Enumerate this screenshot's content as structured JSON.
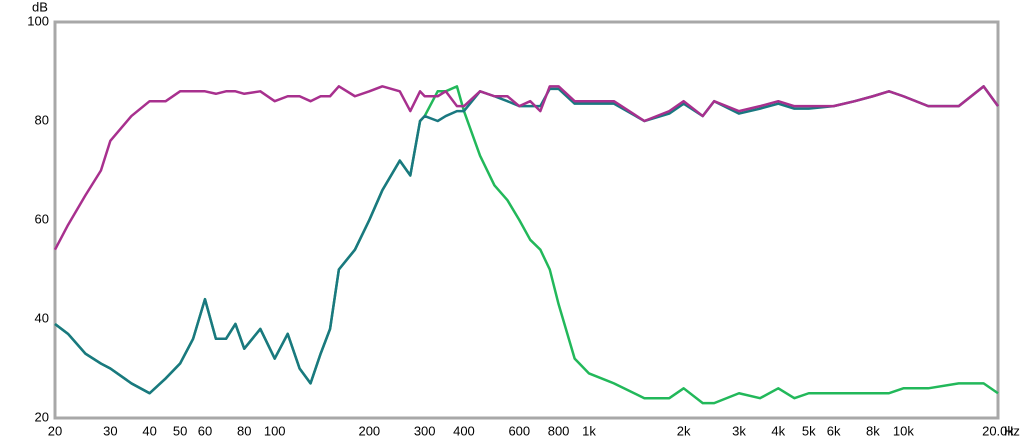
{
  "chart_data": {
    "type": "line",
    "y_unit": "dB",
    "x_unit": "Hz",
    "xscale": "log",
    "grid": true,
    "xlim": [
      20,
      20000
    ],
    "ylim": [
      20,
      100
    ],
    "yticks": [
      20,
      40,
      60,
      80,
      100
    ],
    "ygrid_minor": [
      30,
      50,
      70,
      90
    ],
    "xticks": [
      20,
      30,
      40,
      50,
      60,
      80,
      100,
      200,
      300,
      400,
      600,
      800,
      {
        "value": 1000,
        "label": "1k"
      },
      {
        "value": 2000,
        "label": "2k"
      },
      {
        "value": 3000,
        "label": "3k"
      },
      {
        "value": 4000,
        "label": "4k"
      },
      {
        "value": 5000,
        "label": "5k"
      },
      {
        "value": 6000,
        "label": "6k"
      },
      {
        "value": 8000,
        "label": "8k"
      },
      {
        "value": 10000,
        "label": "10k"
      },
      {
        "value": 20000,
        "label": "20.0k"
      }
    ],
    "xgrid_minor": [
      70,
      90,
      500,
      700,
      900,
      7000,
      9000
    ],
    "x": [
      20,
      22,
      25,
      28,
      30,
      35,
      40,
      45,
      50,
      55,
      60,
      65,
      70,
      75,
      80,
      90,
      100,
      110,
      120,
      130,
      140,
      150,
      160,
      180,
      200,
      220,
      250,
      270,
      290,
      300,
      330,
      350,
      380,
      400,
      450,
      500,
      550,
      600,
      650,
      700,
      750,
      800,
      900,
      1000,
      1200,
      1500,
      1800,
      2000,
      2300,
      2500,
      3000,
      3500,
      4000,
      4500,
      5000,
      6000,
      7000,
      8000,
      9000,
      10000,
      12000,
      15000,
      18000,
      20000
    ],
    "series": [
      {
        "color": "#22b85a",
        "values": [
          39,
          37,
          33,
          31,
          30,
          27,
          25,
          28,
          31,
          36,
          44,
          36,
          36,
          39,
          34,
          38,
          32,
          37,
          30,
          27,
          33,
          38,
          50,
          54,
          60,
          66,
          72,
          69,
          80,
          81,
          86,
          86,
          87,
          82,
          73,
          67,
          64,
          60,
          56,
          54,
          50,
          43,
          32,
          29,
          27,
          24,
          24,
          26,
          23,
          23,
          25,
          24,
          26,
          24,
          25,
          25,
          25,
          25,
          25,
          26,
          26,
          27,
          27,
          25
        ]
      },
      {
        "color": "#1a7880",
        "values": [
          39,
          37,
          33,
          31,
          30,
          27,
          25,
          28,
          31,
          36,
          44,
          36,
          36,
          39,
          34,
          38,
          32,
          37,
          30,
          27,
          33,
          38,
          50,
          54,
          60,
          66,
          72,
          69,
          80,
          81,
          80,
          81,
          82,
          82,
          86,
          85,
          84,
          83,
          83,
          83,
          86.5,
          86.5,
          83.5,
          83.5,
          83.5,
          80,
          81.5,
          83.5,
          81,
          84,
          81.5,
          82.5,
          83.5,
          82.5,
          82.5,
          83,
          84,
          85,
          86,
          85,
          83,
          83,
          87,
          83
        ]
      },
      {
        "color": "#a8308e",
        "values": [
          54,
          59,
          65,
          70,
          76,
          81,
          84,
          84,
          86,
          86,
          86,
          85.5,
          86,
          86,
          85.5,
          86,
          84,
          85,
          85,
          84,
          85,
          85,
          87,
          85,
          86,
          87,
          86,
          82,
          86,
          85,
          85,
          86,
          83,
          83,
          86,
          85,
          85,
          83,
          84,
          82,
          87,
          87,
          84,
          84,
          84,
          80,
          82,
          84,
          81,
          84,
          82,
          83,
          84,
          83,
          83,
          83,
          84,
          85,
          86,
          85,
          83,
          83,
          87,
          83
        ]
      }
    ]
  }
}
